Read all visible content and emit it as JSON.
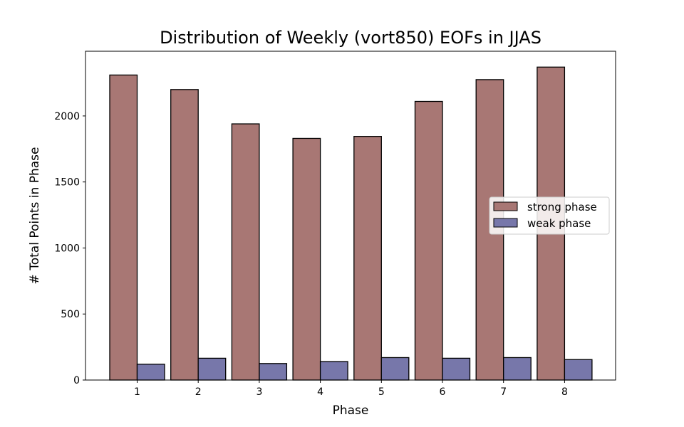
{
  "chart_data": {
    "type": "bar",
    "title": "Distribution of Weekly (vort850) EOFs in JJAS",
    "xlabel": "Phase",
    "ylabel": "# Total Points in Phase",
    "categories": [
      "1",
      "2",
      "3",
      "4",
      "5",
      "6",
      "7",
      "8"
    ],
    "ylim": [
      0,
      2490
    ],
    "yticks": [
      "0",
      "500",
      "1000",
      "1500",
      "2000"
    ],
    "grid": false,
    "legend_position": "center-right",
    "series": [
      {
        "name": "strong phase",
        "color": "#a87774",
        "values": [
          2310,
          2200,
          1940,
          1830,
          1845,
          2110,
          2275,
          2370
        ]
      },
      {
        "name": "weak phase",
        "color": "#7777aa",
        "values": [
          120,
          165,
          125,
          140,
          170,
          165,
          170,
          155
        ]
      }
    ]
  }
}
